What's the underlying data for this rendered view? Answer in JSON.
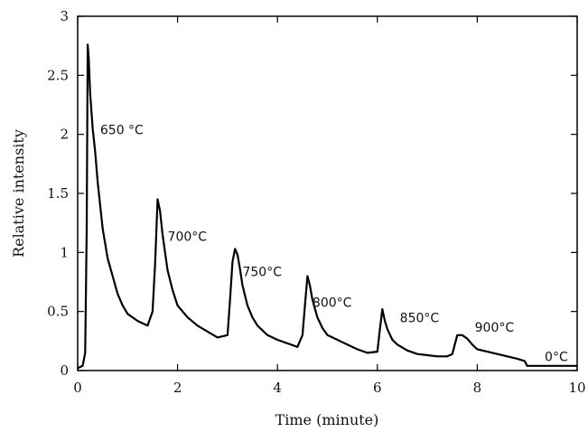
{
  "chart_data": {
    "type": "line",
    "title": "",
    "xlabel": "Time (minute)",
    "ylabel": "Relative intensity",
    "xlim": [
      0,
      10
    ],
    "ylim": [
      0,
      3
    ],
    "xticks": [
      0,
      2,
      4,
      6,
      8,
      10
    ],
    "yticks": [
      0,
      0.5,
      1,
      1.5,
      2,
      2.5,
      3
    ],
    "xtick_labels": [
      "0",
      "2",
      "4",
      "6",
      "8",
      "10"
    ],
    "ytick_labels": [
      "0",
      "0.5",
      "1",
      "1.5",
      "2",
      "2.5",
      "3"
    ],
    "grid": false,
    "line_color": "#000000",
    "series": [
      {
        "x": [
          0,
          0.1,
          0.15,
          0.18,
          0.2,
          0.22,
          0.25,
          0.3,
          0.35,
          0.4,
          0.5,
          0.6,
          0.7,
          0.8,
          0.9,
          1.0,
          1.1,
          1.2,
          1.3,
          1.4,
          1.5,
          1.55,
          1.6,
          1.65,
          1.7,
          1.8,
          1.9,
          2.0,
          2.2,
          2.4,
          2.6,
          2.8,
          3.0,
          3.05,
          3.1,
          3.15,
          3.2,
          3.25,
          3.3,
          3.4,
          3.5,
          3.6,
          3.8,
          4.0,
          4.2,
          4.4,
          4.5,
          4.55,
          4.6,
          4.65,
          4.7,
          4.8,
          4.9,
          5.0,
          5.2,
          5.4,
          5.6,
          5.8,
          6.0,
          6.05,
          6.1,
          6.15,
          6.2,
          6.3,
          6.4,
          6.6,
          6.8,
          7.0,
          7.2,
          7.4,
          7.5,
          7.55,
          7.6,
          7.7,
          7.8,
          7.9,
          8.0,
          8.2,
          8.4,
          8.6,
          8.8,
          8.95,
          9.0,
          9.05,
          10.0
        ],
        "y": [
          0.02,
          0.04,
          0.15,
          1.2,
          2.76,
          2.65,
          2.35,
          2.05,
          1.85,
          1.6,
          1.2,
          0.95,
          0.8,
          0.65,
          0.55,
          0.48,
          0.45,
          0.42,
          0.4,
          0.38,
          0.5,
          0.9,
          1.45,
          1.35,
          1.15,
          0.85,
          0.68,
          0.55,
          0.45,
          0.38,
          0.33,
          0.28,
          0.3,
          0.6,
          0.92,
          1.03,
          0.98,
          0.86,
          0.72,
          0.55,
          0.45,
          0.38,
          0.3,
          0.26,
          0.23,
          0.2,
          0.3,
          0.55,
          0.8,
          0.72,
          0.6,
          0.45,
          0.36,
          0.3,
          0.26,
          0.22,
          0.18,
          0.15,
          0.16,
          0.35,
          0.52,
          0.42,
          0.35,
          0.26,
          0.22,
          0.17,
          0.14,
          0.13,
          0.12,
          0.12,
          0.14,
          0.22,
          0.3,
          0.3,
          0.27,
          0.22,
          0.18,
          0.16,
          0.14,
          0.12,
          0.1,
          0.08,
          0.04,
          0.04,
          0.04
        ]
      }
    ],
    "annotations": [
      {
        "text": "650 °C",
        "x": 0.45,
        "y": 2.0
      },
      {
        "text": "700°C",
        "x": 1.8,
        "y": 1.1
      },
      {
        "text": "750°C",
        "x": 3.3,
        "y": 0.8
      },
      {
        "text": "800°C",
        "x": 4.7,
        "y": 0.54
      },
      {
        "text": "850°C",
        "x": 6.45,
        "y": 0.41
      },
      {
        "text": "900°C",
        "x": 7.95,
        "y": 0.33
      },
      {
        "text": "0°C",
        "x": 9.35,
        "y": 0.08
      }
    ]
  }
}
